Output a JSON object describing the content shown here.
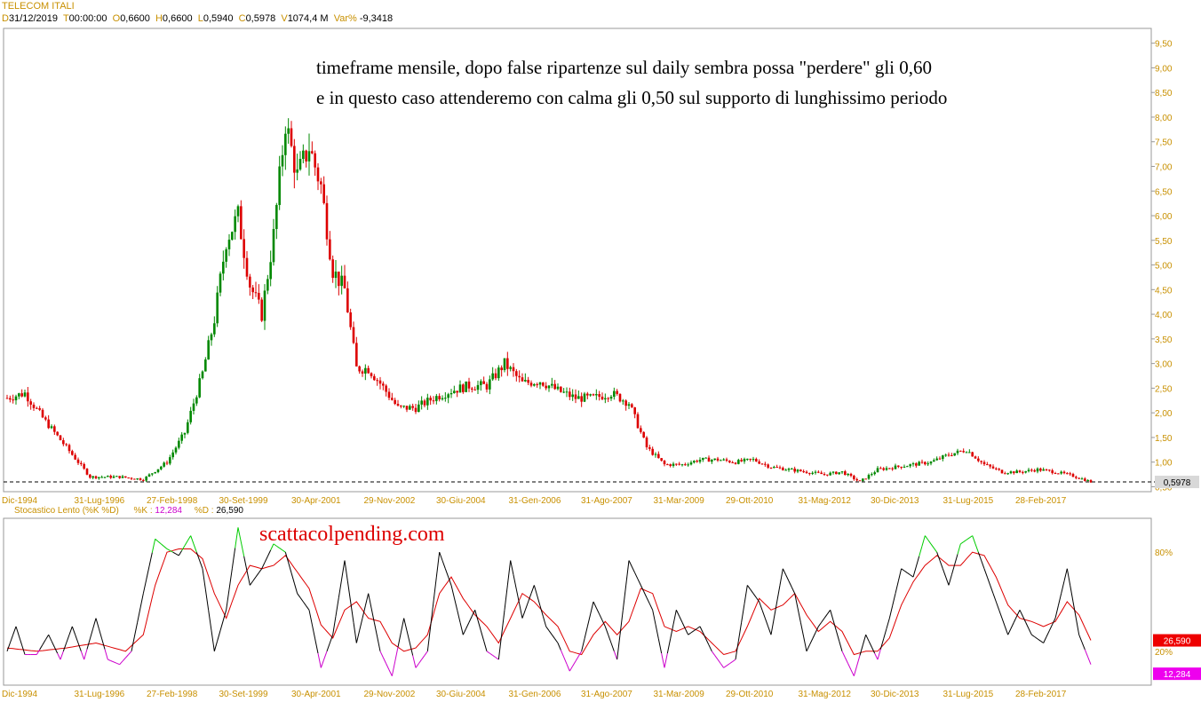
{
  "header": {
    "symbol": "TELECOM ITALI",
    "date_label": "D",
    "date": "31/12/2019",
    "time_label": "T",
    "time": "00:00:00",
    "open_label": "O",
    "open": "0,6600",
    "high_label": "H",
    "high": "0,6600",
    "low_label": "L",
    "low": "0,5940",
    "close_label": "C",
    "close": "0,5978",
    "volume_label": "V",
    "volume": "1074,4 M",
    "var_label": "Var%",
    "var": "-9,3418"
  },
  "annotation": {
    "line1": "timeframe mensile, dopo false ripartenze sul daily sembra possa \"perdere\" gli 0,60",
    "line2": "e in questo caso attenderemo con calma gli 0,50 sul supporto di lunghissimo periodo"
  },
  "watermark": "scattacolpending.com",
  "stoch_header": {
    "name": "Stocastico Lento (%K %D)",
    "k_label": "%K :",
    "k": "12,284",
    "d_label": "%D :",
    "d": "26,590"
  },
  "colors": {
    "up": "#008800",
    "down": "#dd0000",
    "tick": "#c89000",
    "k_line": "#000000",
    "d_line": "#dd0000",
    "overbought": "#00cc00",
    "oversold": "#cc00cc"
  },
  "chart_data": [
    {
      "type": "candlestick",
      "title": "TELECOM ITALI",
      "timeframe": "monthly",
      "y_ticks": [
        "9,50",
        "9,00",
        "8,50",
        "8,00",
        "7,50",
        "7,00",
        "6,50",
        "6,00",
        "5,50",
        "5,00",
        "4,50",
        "4,00",
        "3,50",
        "3,00",
        "2,50",
        "2,00",
        "1,50",
        "1,00",
        "0,50"
      ],
      "ylim": [
        0.4,
        9.8
      ],
      "x_ticks": [
        "Dic-1994",
        "31-Lug-1996",
        "27-Feb-1998",
        "30-Set-1999",
        "30-Apr-2001",
        "29-Nov-2002",
        "30-Giu-2004",
        "31-Gen-2006",
        "31-Ago-2007",
        "31-Mar-2009",
        "29-Ott-2010",
        "31-Mag-2012",
        "30-Dic-2013",
        "31-Lug-2015",
        "28-Feb-2017"
      ],
      "last_price": "0,5978",
      "support_line": 0.5978,
      "anchors": [
        [
          0,
          2.3
        ],
        [
          6,
          2.4
        ],
        [
          12,
          1.9
        ],
        [
          20,
          1.3
        ],
        [
          28,
          0.7
        ],
        [
          38,
          0.7
        ],
        [
          46,
          0.65
        ],
        [
          54,
          1.0
        ],
        [
          60,
          1.6
        ],
        [
          66,
          2.8
        ],
        [
          70,
          3.9
        ],
        [
          74,
          5.5
        ],
        [
          78,
          6.0
        ],
        [
          82,
          4.6
        ],
        [
          86,
          4.0
        ],
        [
          90,
          5.6
        ],
        [
          94,
          7.9
        ],
        [
          98,
          6.8
        ],
        [
          102,
          7.4
        ],
        [
          106,
          6.6
        ],
        [
          110,
          4.9
        ],
        [
          114,
          4.5
        ],
        [
          118,
          2.9
        ],
        [
          122,
          2.9
        ],
        [
          126,
          2.6
        ],
        [
          132,
          2.1
        ],
        [
          138,
          2.1
        ],
        [
          144,
          2.3
        ],
        [
          150,
          2.45
        ],
        [
          156,
          2.55
        ],
        [
          162,
          2.55
        ],
        [
          168,
          3.0
        ],
        [
          174,
          2.6
        ],
        [
          180,
          2.65
        ],
        [
          186,
          2.45
        ],
        [
          192,
          2.3
        ],
        [
          198,
          2.3
        ],
        [
          204,
          2.4
        ],
        [
          210,
          2.2
        ],
        [
          216,
          1.3
        ],
        [
          222,
          0.95
        ],
        [
          228,
          0.95
        ],
        [
          234,
          1.05
        ],
        [
          240,
          1.05
        ],
        [
          246,
          1.0
        ],
        [
          252,
          1.05
        ],
        [
          258,
          0.9
        ],
        [
          264,
          0.85
        ],
        [
          270,
          0.8
        ],
        [
          276,
          0.75
        ],
        [
          282,
          0.8
        ],
        [
          288,
          0.6
        ],
        [
          294,
          0.85
        ],
        [
          300,
          0.9
        ],
        [
          306,
          0.95
        ],
        [
          312,
          1.0
        ],
        [
          318,
          1.15
        ],
        [
          324,
          1.25
        ],
        [
          330,
          0.95
        ],
        [
          336,
          0.8
        ],
        [
          342,
          0.8
        ],
        [
          348,
          0.85
        ],
        [
          354,
          0.8
        ],
        [
          360,
          0.72
        ],
        [
          366,
          0.6
        ]
      ]
    },
    {
      "type": "line",
      "title": "Stocastico Lento (%K %D)",
      "y_ticks": [
        "80%",
        "20%"
      ],
      "ylim": [
        0,
        100
      ],
      "last_values": {
        "%K": "12,284",
        "%D": "26,590"
      },
      "k_anchors": [
        [
          0,
          20
        ],
        [
          3,
          35
        ],
        [
          6,
          18
        ],
        [
          10,
          18
        ],
        [
          14,
          30
        ],
        [
          18,
          15
        ],
        [
          22,
          35
        ],
        [
          26,
          15
        ],
        [
          30,
          40
        ],
        [
          34,
          15
        ],
        [
          38,
          12
        ],
        [
          42,
          20
        ],
        [
          46,
          55
        ],
        [
          50,
          88
        ],
        [
          54,
          82
        ],
        [
          58,
          78
        ],
        [
          62,
          90
        ],
        [
          66,
          70
        ],
        [
          70,
          20
        ],
        [
          74,
          45
        ],
        [
          78,
          95
        ],
        [
          82,
          60
        ],
        [
          86,
          70
        ],
        [
          90,
          85
        ],
        [
          94,
          80
        ],
        [
          98,
          55
        ],
        [
          102,
          45
        ],
        [
          106,
          10
        ],
        [
          110,
          30
        ],
        [
          114,
          75
        ],
        [
          118,
          25
        ],
        [
          122,
          55
        ],
        [
          126,
          20
        ],
        [
          130,
          5
        ],
        [
          134,
          40
        ],
        [
          138,
          10
        ],
        [
          142,
          20
        ],
        [
          146,
          80
        ],
        [
          150,
          60
        ],
        [
          154,
          30
        ],
        [
          158,
          45
        ],
        [
          162,
          20
        ],
        [
          166,
          15
        ],
        [
          170,
          75
        ],
        [
          174,
          40
        ],
        [
          178,
          60
        ],
        [
          182,
          35
        ],
        [
          186,
          25
        ],
        [
          190,
          8
        ],
        [
          194,
          20
        ],
        [
          198,
          50
        ],
        [
          202,
          35
        ],
        [
          206,
          15
        ],
        [
          210,
          75
        ],
        [
          214,
          60
        ],
        [
          218,
          45
        ],
        [
          222,
          10
        ],
        [
          226,
          45
        ],
        [
          230,
          30
        ],
        [
          234,
          35
        ],
        [
          238,
          20
        ],
        [
          242,
          10
        ],
        [
          246,
          15
        ],
        [
          250,
          60
        ],
        [
          254,
          50
        ],
        [
          258,
          30
        ],
        [
          262,
          70
        ],
        [
          266,
          55
        ],
        [
          270,
          20
        ],
        [
          274,
          35
        ],
        [
          278,
          45
        ],
        [
          282,
          20
        ],
        [
          286,
          5
        ],
        [
          290,
          30
        ],
        [
          294,
          15
        ],
        [
          298,
          40
        ],
        [
          302,
          70
        ],
        [
          306,
          65
        ],
        [
          310,
          90
        ],
        [
          314,
          80
        ],
        [
          318,
          60
        ],
        [
          322,
          85
        ],
        [
          326,
          90
        ],
        [
          330,
          70
        ],
        [
          334,
          50
        ],
        [
          338,
          30
        ],
        [
          342,
          45
        ],
        [
          346,
          30
        ],
        [
          350,
          25
        ],
        [
          354,
          40
        ],
        [
          358,
          70
        ],
        [
          362,
          30
        ],
        [
          366,
          12
        ]
      ],
      "d_anchors": [
        [
          0,
          22
        ],
        [
          10,
          20
        ],
        [
          20,
          22
        ],
        [
          30,
          25
        ],
        [
          40,
          20
        ],
        [
          46,
          30
        ],
        [
          50,
          60
        ],
        [
          54,
          80
        ],
        [
          58,
          82
        ],
        [
          62,
          82
        ],
        [
          66,
          76
        ],
        [
          70,
          55
        ],
        [
          74,
          40
        ],
        [
          78,
          60
        ],
        [
          82,
          72
        ],
        [
          86,
          70
        ],
        [
          90,
          72
        ],
        [
          94,
          78
        ],
        [
          98,
          68
        ],
        [
          102,
          58
        ],
        [
          106,
          36
        ],
        [
          110,
          28
        ],
        [
          114,
          45
        ],
        [
          118,
          50
        ],
        [
          122,
          40
        ],
        [
          126,
          38
        ],
        [
          130,
          25
        ],
        [
          134,
          20
        ],
        [
          138,
          22
        ],
        [
          142,
          30
        ],
        [
          146,
          55
        ],
        [
          150,
          65
        ],
        [
          154,
          52
        ],
        [
          158,
          42
        ],
        [
          162,
          35
        ],
        [
          166,
          25
        ],
        [
          170,
          40
        ],
        [
          174,
          55
        ],
        [
          178,
          50
        ],
        [
          182,
          42
        ],
        [
          186,
          35
        ],
        [
          190,
          20
        ],
        [
          194,
          18
        ],
        [
          198,
          30
        ],
        [
          202,
          38
        ],
        [
          206,
          30
        ],
        [
          210,
          38
        ],
        [
          214,
          58
        ],
        [
          218,
          55
        ],
        [
          222,
          35
        ],
        [
          226,
          32
        ],
        [
          230,
          35
        ],
        [
          234,
          32
        ],
        [
          238,
          25
        ],
        [
          242,
          18
        ],
        [
          246,
          20
        ],
        [
          250,
          35
        ],
        [
          254,
          52
        ],
        [
          258,
          45
        ],
        [
          262,
          48
        ],
        [
          266,
          55
        ],
        [
          270,
          42
        ],
        [
          274,
          32
        ],
        [
          278,
          38
        ],
        [
          282,
          32
        ],
        [
          286,
          18
        ],
        [
          290,
          20
        ],
        [
          294,
          20
        ],
        [
          298,
          28
        ],
        [
          302,
          48
        ],
        [
          306,
          62
        ],
        [
          310,
          72
        ],
        [
          314,
          78
        ],
        [
          318,
          72
        ],
        [
          322,
          72
        ],
        [
          326,
          80
        ],
        [
          330,
          78
        ],
        [
          334,
          65
        ],
        [
          338,
          48
        ],
        [
          342,
          40
        ],
        [
          346,
          38
        ],
        [
          350,
          35
        ],
        [
          354,
          38
        ],
        [
          358,
          50
        ],
        [
          362,
          42
        ],
        [
          366,
          26.59
        ]
      ]
    }
  ]
}
